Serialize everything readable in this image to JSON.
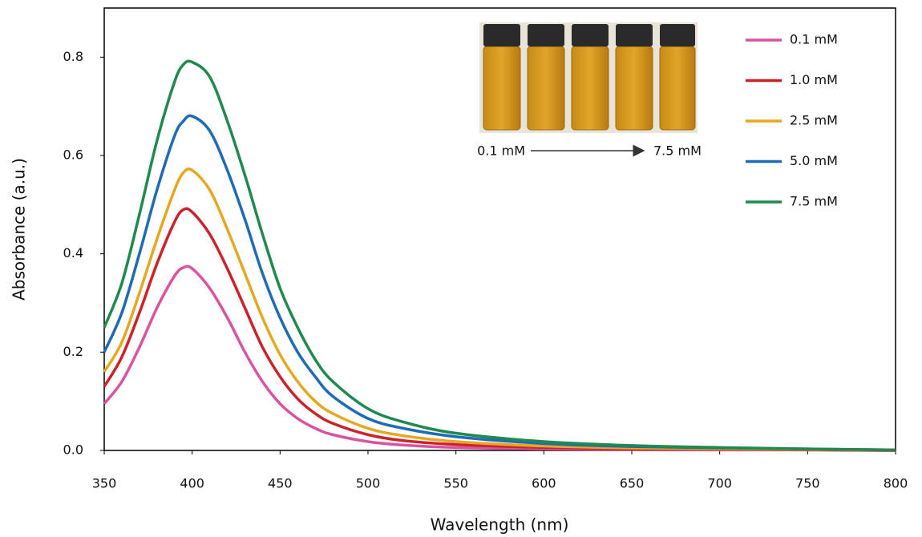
{
  "chart_data": {
    "type": "line",
    "x_label": "Wavelength (nm)",
    "y_label": "Absorbance (a.u.)",
    "x": [
      350,
      360,
      370,
      380,
      390,
      395,
      400,
      410,
      420,
      430,
      440,
      450,
      460,
      470,
      480,
      500,
      520,
      550,
      600,
      650,
      700,
      750,
      800
    ],
    "series": [
      {
        "name": "0.1 mM",
        "color": "#d9539f",
        "values": [
          0.095,
          0.14,
          0.21,
          0.29,
          0.355,
          0.372,
          0.37,
          0.33,
          0.27,
          0.2,
          0.14,
          0.095,
          0.065,
          0.045,
          0.032,
          0.018,
          0.011,
          0.006,
          0.003,
          0.002,
          0.001,
          0.001,
          0
        ]
      },
      {
        "name": "1.0 mM",
        "color": "#cc2229",
        "values": [
          0.13,
          0.19,
          0.28,
          0.38,
          0.465,
          0.49,
          0.485,
          0.44,
          0.37,
          0.29,
          0.21,
          0.15,
          0.105,
          0.075,
          0.055,
          0.032,
          0.02,
          0.012,
          0.006,
          0.003,
          0.002,
          0.001,
          0
        ]
      },
      {
        "name": "2.5 mM",
        "color": "#e4a823",
        "values": [
          0.16,
          0.22,
          0.32,
          0.43,
          0.53,
          0.565,
          0.57,
          0.53,
          0.45,
          0.36,
          0.27,
          0.195,
          0.14,
          0.1,
          0.075,
          0.045,
          0.03,
          0.018,
          0.009,
          0.005,
          0.003,
          0.002,
          0.001
        ]
      },
      {
        "name": "5.0 mM",
        "color": "#1f6bb5",
        "values": [
          0.2,
          0.28,
          0.4,
          0.53,
          0.64,
          0.67,
          0.68,
          0.65,
          0.57,
          0.47,
          0.36,
          0.27,
          0.2,
          0.15,
          0.11,
          0.065,
          0.045,
          0.028,
          0.014,
          0.008,
          0.005,
          0.003,
          0.001
        ]
      },
      {
        "name": "7.5 mM",
        "color": "#1e8a4d",
        "values": [
          0.25,
          0.34,
          0.48,
          0.63,
          0.75,
          0.785,
          0.79,
          0.76,
          0.67,
          0.56,
          0.44,
          0.33,
          0.25,
          0.185,
          0.14,
          0.085,
          0.058,
          0.035,
          0.018,
          0.01,
          0.006,
          0.003,
          0.001
        ]
      }
    ],
    "xlim": [
      350,
      800
    ],
    "xticks": [
      350,
      400,
      450,
      500,
      550,
      600,
      650,
      700,
      750,
      800
    ],
    "ylim": [
      0,
      0.9
    ],
    "yticks": [
      {
        "value": 0,
        "label": "0.0"
      },
      0.2,
      0.4,
      0.6,
      0.8
    ],
    "grid": false,
    "legend": "upper-right",
    "annotations": [
      "0.1 mM",
      "7.5 mM"
    ]
  }
}
